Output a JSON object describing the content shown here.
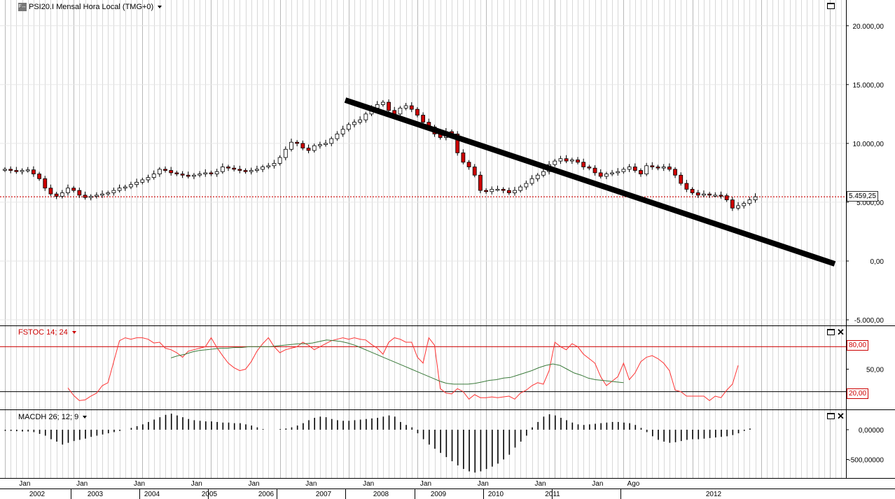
{
  "main": {
    "title": "PSI20.I Mensal Hora Local (TMG+0)",
    "icon_text": "F↔",
    "price_tag": "5.459,25"
  },
  "stoch": {
    "title": "FSTOC 14; 24",
    "upper_level": "80,00",
    "lower_level": "20,00"
  },
  "macd": {
    "title": "MACDH 26; 12; 9"
  },
  "colors": {
    "up": "#ffffff",
    "down": "#cc0000",
    "stoch_k": "#ff3333",
    "stoch_d": "#3a7a3a",
    "trend": "#000000"
  },
  "chart_data": [
    {
      "type": "candlestick",
      "title": "PSI20.I Mensal Hora Local (TMG+0)",
      "y_ticks": [
        "20.000,00",
        "15.000,00",
        "10.000,00",
        "5.000,00",
        "0,00",
        "-5.000,00"
      ],
      "ylim": [
        -5000,
        21000
      ],
      "last_price": 5459.25,
      "x_month_labels": [
        "Jan",
        "Jan",
        "Jan",
        "Jan",
        "Jan",
        "Jan",
        "Jan",
        "Jan",
        "Jan",
        "Jan",
        "Jan",
        "Ago"
      ],
      "x_year_labels": [
        "2002",
        "2003",
        "2004",
        "2005",
        "2006",
        "2007",
        "2008",
        "2009",
        "2010",
        "2011",
        "2012"
      ],
      "closes_approx": [
        7800,
        7700,
        7600,
        7700,
        7750,
        7400,
        7000,
        6200,
        5700,
        5500,
        5800,
        6200,
        6000,
        5600,
        5400,
        5500,
        5600,
        5700,
        5800,
        6000,
        6200,
        6300,
        6500,
        6700,
        6900,
        7100,
        7400,
        7800,
        7700,
        7500,
        7400,
        7300,
        7200,
        7300,
        7400,
        7500,
        7400,
        7600,
        8000,
        7900,
        7800,
        7700,
        7600,
        7700,
        7800,
        8000,
        8100,
        8300,
        8800,
        9500,
        10100,
        10000,
        9600,
        9400,
        9800,
        9900,
        10000,
        10400,
        10800,
        11200,
        11600,
        11800,
        12000,
        12500,
        13000,
        13300,
        13500,
        12800,
        12500,
        13000,
        13200,
        12900,
        12400,
        11800,
        11400,
        10800,
        10500,
        11000,
        10800,
        9200,
        8400,
        8000,
        7300,
        6000,
        5900,
        6100,
        6100,
        6000,
        5800,
        6000,
        6300,
        6600,
        7000,
        7300,
        7600,
        8200,
        8500,
        8700,
        8500,
        8600,
        8400,
        8000,
        7900,
        7500,
        7200,
        7400,
        7500,
        7600,
        7800,
        8000,
        7700,
        7400,
        8100,
        8000,
        7900,
        8000,
        7800,
        7300,
        6600,
        6100,
        5800,
        5600,
        5700,
        5600,
        5600,
        5550,
        5200,
        4500,
        4700,
        4900,
        5200,
        5459
      ]
    },
    {
      "type": "line",
      "title": "FSTOC 14; 24",
      "levels": [
        80,
        20
      ],
      "ylim": [
        0,
        100
      ],
      "y_ticks": [
        "50,00"
      ],
      "series": [
        {
          "values": [
            25,
            15,
            8,
            9,
            14,
            18,
            28,
            32,
            60,
            88,
            92,
            90,
            92,
            92,
            90,
            85,
            86,
            78,
            76,
            72,
            66,
            74,
            76,
            78,
            80,
            92,
            79,
            68,
            58,
            52,
            48,
            50,
            60,
            74,
            84,
            92,
            80,
            72,
            76,
            78,
            80,
            86,
            82,
            76,
            80,
            84,
            88,
            90,
            92,
            90,
            92,
            90,
            89,
            83,
            78,
            70,
            86,
            92,
            90,
            86,
            86,
            66,
            58,
            92,
            82,
            24,
            18,
            17,
            24,
            20,
            10,
            16,
            12,
            12,
            13,
            12,
            13,
            14,
            10,
            18,
            22,
            28,
            32,
            30,
            48,
            86,
            80,
            76,
            84,
            80,
            70,
            64,
            58,
            40,
            28,
            34,
            40,
            58,
            36,
            45,
            60,
            66,
            68,
            64,
            58,
            48,
            22,
            20,
            14,
            14,
            14,
            14,
            8,
            14,
            12,
            22,
            30,
            55
          ]
        },
        {
          "values": [
            65,
            68,
            70,
            73,
            75,
            76,
            77,
            78,
            78,
            79,
            79,
            80,
            80,
            80,
            80,
            81,
            82,
            83,
            84,
            84,
            85,
            87,
            89,
            88,
            87,
            85,
            82,
            78,
            74,
            70,
            66,
            62,
            58,
            54,
            50,
            46,
            42,
            38,
            34,
            31,
            30,
            30,
            30,
            31,
            33,
            35,
            36,
            38,
            39,
            42,
            45,
            48,
            52,
            55,
            57,
            55,
            50,
            45,
            42,
            38,
            36,
            35,
            34,
            33,
            32
          ]
        }
      ]
    },
    {
      "type": "bar",
      "title": "MACDH 26; 12; 9",
      "y_ticks": [
        "0,00000",
        "-500,00000"
      ],
      "ylim": [
        -800,
        300
      ],
      "values": [
        -20,
        -20,
        -25,
        -30,
        -30,
        -40,
        -70,
        -100,
        -160,
        -200,
        -250,
        -220,
        -190,
        -170,
        -150,
        -120,
        -100,
        -80,
        -60,
        -40,
        -20,
        0,
        30,
        60,
        90,
        130,
        170,
        210,
        250,
        270,
        240,
        210,
        180,
        160,
        150,
        140,
        140,
        130,
        120,
        120,
        110,
        110,
        90,
        70,
        40,
        10,
        0,
        0,
        10,
        20,
        40,
        70,
        110,
        160,
        200,
        220,
        210,
        180,
        160,
        150,
        150,
        160,
        170,
        180,
        190,
        200,
        220,
        240,
        220,
        130,
        80,
        40,
        -60,
        -160,
        -250,
        -320,
        -390,
        -460,
        -530,
        -600,
        -660,
        -700,
        -720,
        -700,
        -660,
        -620,
        -570,
        -500,
        -420,
        -300,
        -200,
        -100,
        40,
        130,
        220,
        260,
        240,
        200,
        160,
        120,
        90,
        80,
        90,
        100,
        110,
        120,
        130,
        130,
        120,
        110,
        80,
        30,
        -40,
        -110,
        -170,
        -200,
        -220,
        -210,
        -190,
        -170,
        -160,
        -160,
        -150,
        -140,
        -130,
        -120,
        -110,
        -90,
        -60,
        -20,
        20
      ]
    }
  ]
}
